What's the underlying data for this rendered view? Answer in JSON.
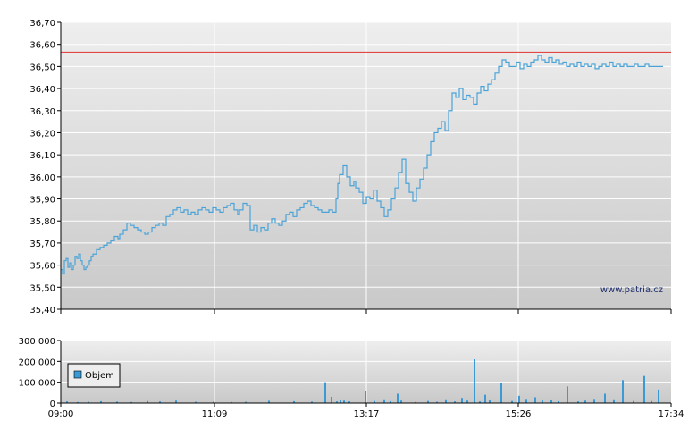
{
  "watermark": "www.patria.cz",
  "colors": {
    "line": "#4aa3d8",
    "bar": "#3a9ad6",
    "ref_line": "#e03030",
    "grid": "#ffffff"
  },
  "chart_data": [
    {
      "type": "line",
      "ylim": [
        35.4,
        36.7
      ],
      "y_ticks": [
        "35,40",
        "35,50",
        "35,60",
        "35,70",
        "35,80",
        "35,90",
        "36,00",
        "36,10",
        "36,20",
        "36,30",
        "36,40",
        "36,50",
        "36,60",
        "36,70"
      ],
      "x_ticks": [
        "09:00",
        "11:09",
        "13:17",
        "15:26",
        "17:34"
      ],
      "reference_line": 36.565,
      "series": [
        {
          "x": [
            0,
            2,
            4,
            6,
            8,
            10,
            12,
            14,
            16,
            18,
            20,
            22,
            24,
            26,
            28,
            30,
            32,
            34,
            36,
            40,
            44,
            48,
            52,
            56,
            60,
            64,
            66,
            70,
            74,
            78,
            82,
            86,
            90,
            94,
            98,
            102,
            106,
            110,
            114,
            118,
            122,
            126,
            130,
            134,
            138,
            142,
            146,
            150,
            154,
            158,
            162,
            166,
            170,
            174,
            178,
            182,
            186,
            190,
            194,
            198,
            200,
            204,
            208,
            212,
            216,
            220,
            224,
            228,
            232,
            236,
            240,
            244,
            248,
            252,
            256,
            260,
            264,
            268,
            272,
            276,
            280,
            284,
            288,
            292,
            296,
            300,
            304,
            308,
            310,
            312,
            316,
            320,
            324,
            328,
            330,
            334,
            338,
            342,
            346,
            350,
            354,
            358,
            362,
            366,
            370,
            374,
            378,
            382,
            386,
            390,
            394,
            398,
            402,
            406,
            410,
            414,
            418,
            422,
            426,
            430,
            434,
            438,
            442,
            446,
            450,
            454,
            458,
            462,
            466,
            470,
            474,
            478,
            482,
            486,
            490,
            494,
            498,
            502,
            506,
            510,
            514,
            518,
            522,
            526,
            530,
            534,
            538,
            542,
            546,
            550,
            554,
            558,
            562,
            566,
            570,
            574,
            578,
            582,
            586,
            590,
            594,
            598,
            602,
            606,
            610,
            614,
            618,
            622,
            626,
            630,
            634,
            638,
            642,
            646,
            650,
            654,
            658,
            662,
            666,
            670,
            674
          ],
          "values": [
            35.58,
            35.56,
            35.62,
            35.63,
            35.59,
            35.61,
            35.58,
            35.6,
            35.64,
            35.63,
            35.65,
            35.62,
            35.6,
            35.58,
            35.59,
            35.6,
            35.62,
            35.64,
            35.65,
            35.67,
            35.68,
            35.69,
            35.7,
            35.71,
            35.73,
            35.72,
            35.74,
            35.76,
            35.79,
            35.78,
            35.77,
            35.76,
            35.75,
            35.74,
            35.75,
            35.77,
            35.78,
            35.79,
            35.78,
            35.82,
            35.83,
            35.85,
            35.86,
            35.84,
            35.85,
            35.83,
            35.84,
            35.83,
            35.85,
            35.86,
            35.85,
            35.84,
            35.86,
            35.85,
            35.84,
            35.86,
            35.87,
            35.88,
            35.85,
            35.83,
            35.85,
            35.88,
            35.87,
            35.76,
            35.78,
            35.75,
            35.77,
            35.76,
            35.79,
            35.81,
            35.79,
            35.78,
            35.8,
            35.83,
            35.84,
            35.82,
            35.85,
            35.86,
            35.88,
            35.89,
            35.87,
            35.86,
            35.85,
            35.84,
            35.84,
            35.85,
            35.84,
            35.9,
            35.97,
            36.01,
            36.05,
            36.0,
            35.96,
            35.98,
            35.95,
            35.93,
            35.88,
            35.91,
            35.9,
            35.94,
            35.89,
            35.86,
            35.82,
            35.85,
            35.9,
            35.95,
            36.02,
            36.08,
            35.97,
            35.93,
            35.89,
            35.95,
            35.99,
            36.04,
            36.1,
            36.16,
            36.2,
            36.22,
            36.25,
            36.21,
            36.3,
            36.38,
            36.36,
            36.4,
            36.35,
            36.37,
            36.36,
            36.33,
            36.38,
            36.41,
            36.39,
            36.42,
            36.44,
            36.47,
            36.5,
            36.53,
            36.52,
            36.5,
            36.5,
            36.52,
            36.49,
            36.51,
            36.5,
            36.52,
            36.53,
            36.55,
            36.53,
            36.52,
            36.54,
            36.52,
            36.53,
            36.51,
            36.52,
            36.5,
            36.51,
            36.5,
            36.52,
            36.5,
            36.51,
            36.5,
            36.51,
            36.49,
            36.5,
            36.51,
            36.5,
            36.52,
            36.5,
            36.51,
            36.5,
            36.51,
            36.5,
            36.5,
            36.51,
            36.5,
            36.5,
            36.51,
            36.5,
            36.5,
            36.5,
            36.5,
            36.5
          ]
        }
      ]
    },
    {
      "type": "bar",
      "ylim": [
        0,
        300000
      ],
      "y_ticks": [
        "0",
        "100 000",
        "200 000",
        "300 000"
      ],
      "x_ticks": [
        "09:00",
        "11:09",
        "13:17",
        "15:26",
        "17:34"
      ],
      "legend": "Objem",
      "series": [
        {
          "name": "Objem",
          "x": [
            6,
            18,
            30,
            44,
            62,
            78,
            96,
            110,
            128,
            150,
            170,
            190,
            206,
            232,
            260,
            280,
            295,
            302,
            308,
            312,
            316,
            322,
            340,
            350,
            361,
            368,
            376,
            380,
            396,
            410,
            420,
            430,
            440,
            448,
            454,
            462,
            468,
            474,
            479,
            492,
            504,
            512,
            520,
            530,
            538,
            548,
            556,
            566,
            578,
            586,
            596,
            608,
            618,
            628,
            640,
            652,
            660,
            668
          ],
          "values": [
            8000,
            5000,
            6000,
            9000,
            7000,
            5000,
            10000,
            8000,
            12000,
            6000,
            7000,
            5000,
            6000,
            11000,
            9000,
            7000,
            100000,
            30000,
            8000,
            15000,
            12000,
            8000,
            60000,
            10000,
            18000,
            9000,
            45000,
            12000,
            5000,
            10000,
            6000,
            18000,
            8000,
            25000,
            12000,
            210000,
            8000,
            40000,
            15000,
            95000,
            10000,
            35000,
            20000,
            28000,
            12000,
            15000,
            9000,
            80000,
            8000,
            12000,
            20000,
            45000,
            18000,
            110000,
            10000,
            130000,
            10000,
            65000
          ]
        }
      ]
    }
  ]
}
